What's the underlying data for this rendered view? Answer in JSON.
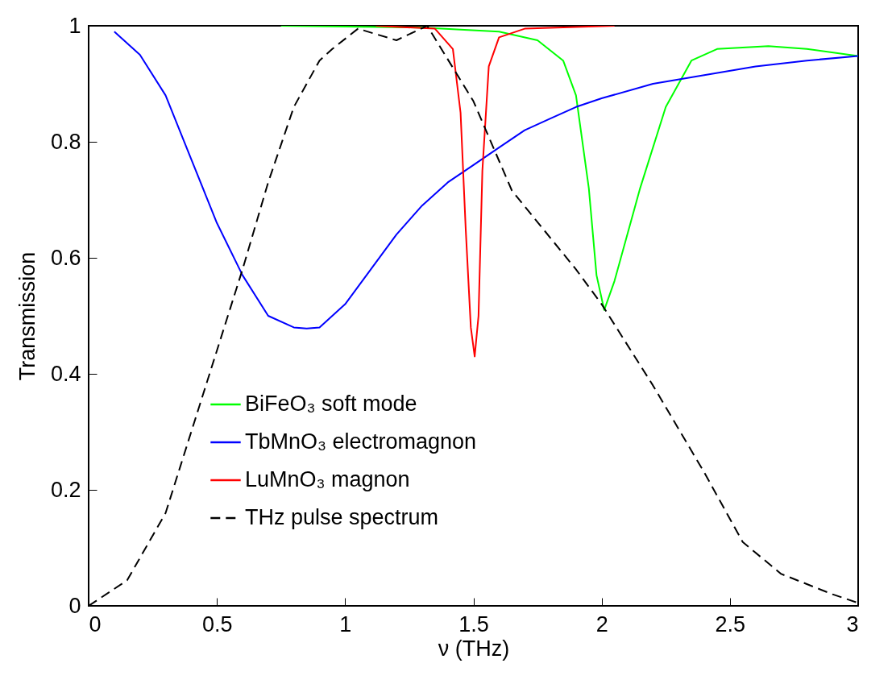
{
  "chart_data": {
    "type": "line",
    "xlabel": "ν (THz)",
    "ylabel": "Transmission",
    "xlim": [
      0,
      3
    ],
    "ylim": [
      0,
      1
    ],
    "xticks": [
      0,
      0.5,
      1,
      1.5,
      2,
      2.5,
      3
    ],
    "yticks": [
      0,
      0.2,
      0.4,
      0.6,
      0.8,
      1
    ],
    "grid": false,
    "legend": "bottom left",
    "marker": "none",
    "series": [
      {
        "name": "BiFeO₃ soft mode",
        "color": "#00ff00",
        "line_style": "solid",
        "x": [
          0.75,
          1.3,
          1.6,
          1.75,
          1.85,
          1.9,
          1.95,
          1.98,
          2.01,
          2.05,
          2.15,
          2.25,
          2.35,
          2.45,
          2.65,
          2.8,
          3.0
        ],
        "values": [
          1.0,
          0.997,
          0.99,
          0.975,
          0.94,
          0.88,
          0.72,
          0.57,
          0.51,
          0.56,
          0.72,
          0.86,
          0.94,
          0.96,
          0.965,
          0.96,
          0.948
        ]
      },
      {
        "name": "TbMnO₃ electromagnon",
        "color": "#0000ff",
        "line_style": "solid",
        "x": [
          0.1,
          0.2,
          0.3,
          0.4,
          0.5,
          0.6,
          0.7,
          0.8,
          0.85,
          0.9,
          1.0,
          1.1,
          1.2,
          1.3,
          1.4,
          1.5,
          1.6,
          1.7,
          1.8,
          1.9,
          2.0,
          2.2,
          2.4,
          2.6,
          2.8,
          3.0
        ],
        "values": [
          0.99,
          0.95,
          0.88,
          0.77,
          0.66,
          0.57,
          0.5,
          0.48,
          0.478,
          0.48,
          0.52,
          0.58,
          0.64,
          0.69,
          0.73,
          0.76,
          0.79,
          0.82,
          0.84,
          0.86,
          0.875,
          0.9,
          0.915,
          0.93,
          0.94,
          0.948
        ]
      },
      {
        "name": "LuMnO₃ magnon",
        "color": "#ff0000",
        "line_style": "solid",
        "x": [
          1.12,
          1.35,
          1.42,
          1.45,
          1.47,
          1.49,
          1.505,
          1.52,
          1.535,
          1.56,
          1.6,
          1.7,
          2.05
        ],
        "values": [
          1.0,
          0.995,
          0.96,
          0.85,
          0.65,
          0.48,
          0.43,
          0.5,
          0.75,
          0.93,
          0.98,
          0.995,
          1.0
        ]
      },
      {
        "name": "THz pulse spectrum",
        "color": "#000000",
        "line_style": "dashed",
        "x": [
          0,
          0.15,
          0.3,
          0.4,
          0.5,
          0.6,
          0.7,
          0.8,
          0.9,
          0.95,
          1.05,
          1.2,
          1.32,
          1.5,
          1.65,
          1.9,
          2.0,
          2.2,
          2.4,
          2.55,
          2.7,
          2.9,
          3.0
        ],
        "values": [
          0.0,
          0.044,
          0.16,
          0.3,
          0.44,
          0.58,
          0.73,
          0.86,
          0.94,
          0.96,
          0.995,
          0.975,
          1.0,
          0.87,
          0.716,
          0.58,
          0.52,
          0.38,
          0.23,
          0.11,
          0.055,
          0.02,
          0.005
        ]
      }
    ]
  }
}
